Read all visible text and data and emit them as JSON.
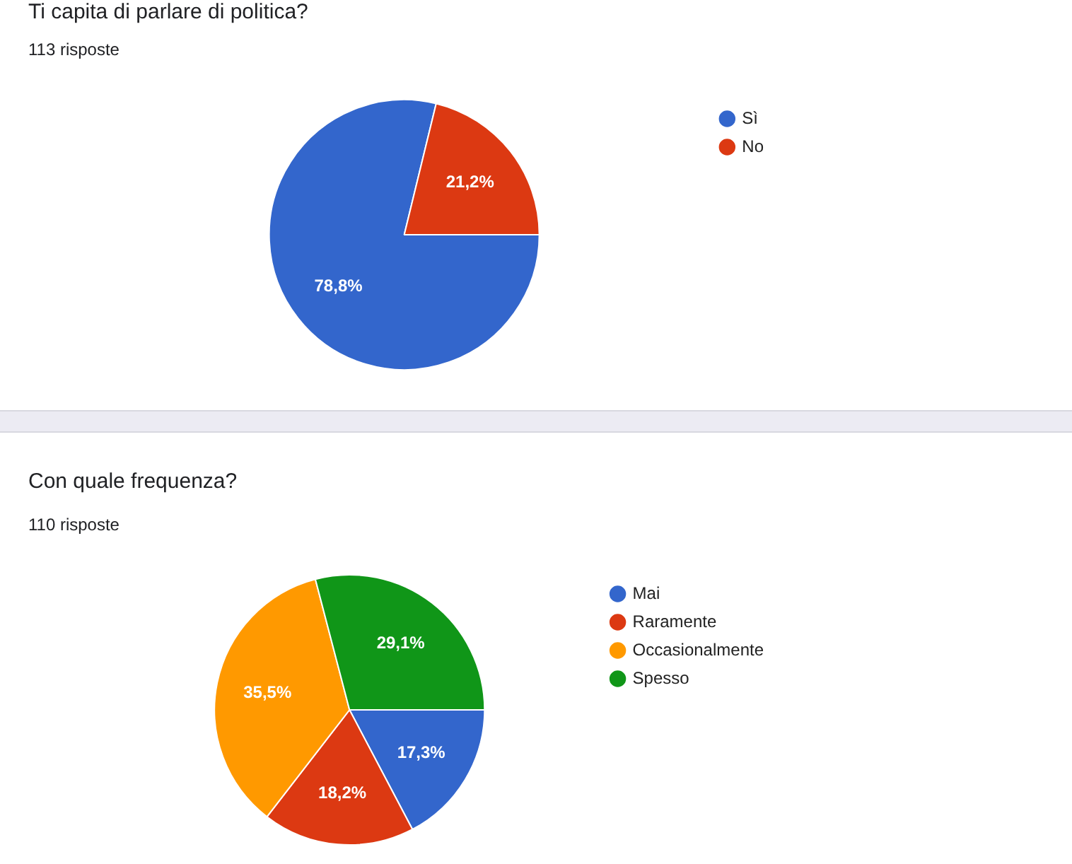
{
  "chart_data": [
    {
      "type": "pie",
      "title": "Ti capita di parlare di politica?",
      "subtitle": "113 risposte",
      "categories": [
        "Sì",
        "No"
      ],
      "values": [
        78.8,
        21.2
      ],
      "colors": [
        "#3366cc",
        "#dc3912"
      ],
      "value_labels": [
        "78,8%",
        "21,2%"
      ],
      "legend": "top right"
    },
    {
      "type": "pie",
      "title": "Con quale frequenza?",
      "subtitle": "110 risposte",
      "categories": [
        "Mai",
        "Raramente",
        "Occasionalmente",
        "Spesso"
      ],
      "values": [
        17.3,
        18.2,
        35.5,
        29.1
      ],
      "colors": [
        "#3366cc",
        "#dc3912",
        "#ff9900",
        "#109618"
      ],
      "value_labels": [
        "17,3%",
        "18,2%",
        "35,5%",
        "29,1%"
      ],
      "legend": "top right"
    }
  ]
}
